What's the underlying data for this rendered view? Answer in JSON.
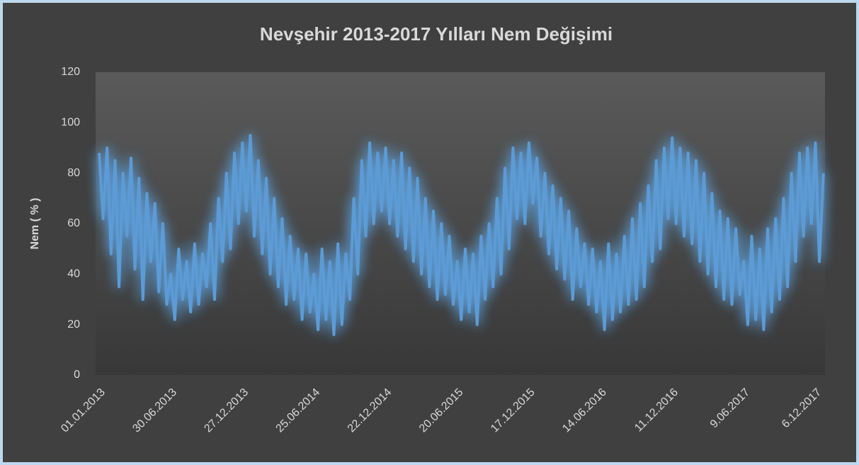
{
  "chart_data": {
    "type": "line",
    "title": "Nevşehir  2013-2017 Yılları Nem Değişimi",
    "y_label": "Nem ( % )",
    "categories": [
      "01.01.2013",
      null,
      null,
      null,
      null,
      null,
      null,
      null,
      null,
      null,
      null,
      null,
      null,
      null,
      null,
      null,
      null,
      null,
      "30.06.2013",
      null,
      null,
      null,
      null,
      null,
      null,
      null,
      null,
      null,
      null,
      null,
      null,
      null,
      null,
      null,
      null,
      null,
      "27.12.2013",
      null,
      null,
      null,
      null,
      null,
      null,
      null,
      null,
      null,
      null,
      null,
      null,
      null,
      null,
      null,
      null,
      null,
      "25.06.2014",
      null,
      null,
      null,
      null,
      null,
      null,
      null,
      null,
      null,
      null,
      null,
      null,
      null,
      null,
      null,
      null,
      null,
      "22.12.2014",
      null,
      null,
      null,
      null,
      null,
      null,
      null,
      null,
      null,
      null,
      null,
      null,
      null,
      null,
      null,
      null,
      null,
      "20.06.2015",
      null,
      null,
      null,
      null,
      null,
      null,
      null,
      null,
      null,
      null,
      null,
      null,
      null,
      null,
      null,
      null,
      null,
      "17.12.2015",
      null,
      null,
      null,
      null,
      null,
      null,
      null,
      null,
      null,
      null,
      null,
      null,
      null,
      null,
      null,
      null,
      null,
      "14.06.2016",
      null,
      null,
      null,
      null,
      null,
      null,
      null,
      null,
      null,
      null,
      null,
      null,
      null,
      null,
      null,
      null,
      null,
      "11.12.2016",
      null,
      null,
      null,
      null,
      null,
      null,
      null,
      null,
      null,
      null,
      null,
      null,
      null,
      null,
      null,
      null,
      null,
      "9.06.2017",
      null,
      null,
      null,
      null,
      null,
      null,
      null,
      null,
      null,
      null,
      null,
      null,
      null,
      null,
      null,
      null,
      null,
      "6.12.2017",
      null,
      null
    ],
    "series": [
      {
        "name": "Nem",
        "color": "#5b9bd5",
        "values": [
          88,
          62,
          90,
          48,
          85,
          35,
          80,
          55,
          86,
          42,
          78,
          30,
          72,
          45,
          68,
          33,
          60,
          28,
          40,
          22,
          50,
          30,
          45,
          25,
          52,
          28,
          48,
          35,
          60,
          30,
          70,
          45,
          80,
          50,
          88,
          60,
          92,
          65,
          95,
          55,
          85,
          48,
          78,
          40,
          70,
          35,
          62,
          28,
          55,
          30,
          50,
          22,
          48,
          25,
          40,
          18,
          50,
          22,
          45,
          16,
          52,
          20,
          48,
          30,
          70,
          40,
          85,
          55,
          92,
          60,
          88,
          65,
          90,
          60,
          85,
          55,
          88,
          50,
          82,
          45,
          78,
          40,
          70,
          35,
          65,
          30,
          60,
          32,
          55,
          28,
          45,
          22,
          50,
          25,
          48,
          20,
          55,
          30,
          60,
          35,
          70,
          40,
          82,
          50,
          90,
          62,
          88,
          60,
          92,
          68,
          86,
          55,
          80,
          48,
          75,
          42,
          70,
          38,
          65,
          30,
          58,
          35,
          52,
          28,
          50,
          25,
          45,
          18,
          52,
          22,
          48,
          25,
          55,
          28,
          62,
          30,
          68,
          35,
          75,
          45,
          85,
          50,
          90,
          62,
          94,
          60,
          90,
          55,
          88,
          52,
          85,
          45,
          80,
          40,
          72,
          35,
          65,
          30,
          62,
          28,
          58,
          32,
          45,
          20,
          55,
          22,
          50,
          18,
          58,
          25,
          62,
          30,
          70,
          35,
          80,
          45,
          88,
          55,
          90,
          60,
          92,
          45,
          80
        ]
      }
    ],
    "ylim": [
      0,
      120
    ],
    "yticks": [
      0,
      20,
      40,
      60,
      80,
      100,
      120
    ],
    "grid": false
  }
}
